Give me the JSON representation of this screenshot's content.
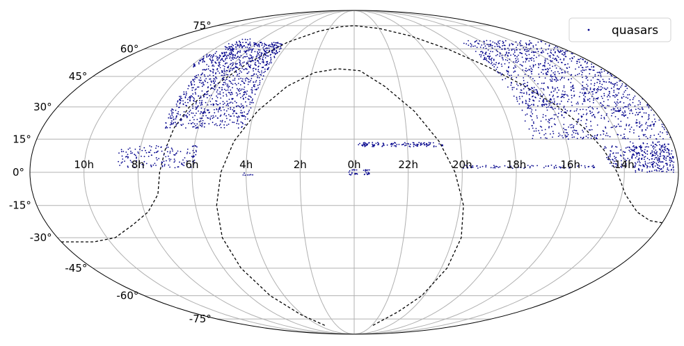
{
  "chart_data": {
    "type": "scatter",
    "projection": "mollweide",
    "grid": true,
    "legend": {
      "position": "top-right",
      "entries": [
        {
          "label": "quasars",
          "marker": "dot"
        }
      ]
    },
    "colors": {
      "points": "#00008b",
      "grid": "#b0b0b0",
      "outline": "#000000",
      "boundary": "#000000"
    },
    "ra_ticks": [
      "10h",
      "8h",
      "6h",
      "4h",
      "2h",
      "0h",
      "22h",
      "20h",
      "18h",
      "16h",
      "14h"
    ],
    "dec_ticks": [
      "75°",
      "60°",
      "45°",
      "30°",
      "15°",
      "0°",
      "-15°",
      "-30°",
      "-45°",
      "-60°",
      "-75°"
    ],
    "series": [
      {
        "name": "quasars",
        "regions": [
          {
            "lon": [
              -9.5,
              8.0
            ],
            "lat": [
              6,
              30
            ],
            "density": 340,
            "note": ""
          },
          {
            "lon": [
              -27.0,
              -10.0
            ],
            "lat": [
              2,
              14
            ],
            "density": 240,
            "note": ""
          },
          {
            "lon": [
              -28.5,
              -23.0
            ],
            "lat": [
              27,
              35
            ],
            "density": 45,
            "note": ""
          },
          {
            "lon": [
              13.5,
              30.0
            ],
            "lat": [
              15,
              64
            ],
            "density": 700,
            "note": ""
          },
          {
            "lon": [
              -4.5,
              -0.5
            ],
            "lat": [
              3,
              14
            ],
            "density": 55,
            "note": ""
          },
          {
            "lon": [
              -8.0,
              -2.5
            ],
            "lat": [
              -6,
              0
            ],
            "density": 30,
            "note": ""
          },
          {
            "lon": [
              -22.0,
              -6.0
            ],
            "lat": [
              -10,
              -8
            ],
            "density": 40,
            "note": ""
          },
          {
            "lon": [
              -5.0,
              1.0
            ],
            "lat": [
              -8,
              6
            ],
            "density": 0,
            "note": ""
          }
        ],
        "stripes": [
          {
            "lon": [
              -50,
              -2
            ],
            "lat": [
              11.5,
              13.5
            ],
            "count": 110
          },
          {
            "lon": [
              -135,
              -60
            ],
            "lat": [
              1.8,
              3.2
            ],
            "count": 70
          },
          {
            "lon": [
              -8.5,
              3.0
            ],
            "lat": [
              -1.2,
              1.2
            ],
            "count": 35
          },
          {
            "lon": [
              55,
              62
            ],
            "lat": [
              -1.5,
              -0.3
            ],
            "count": 8
          }
        ],
        "blobs": [
          {
            "lon": [
              -180,
              -100
            ],
            "lat": [
              15,
              65
            ],
            "count": 1100
          },
          {
            "lon": [
              62,
              110
            ],
            "lat": [
              20,
              64
            ],
            "count": 1000
          },
          {
            "lon": [
              -178,
              -155
            ],
            "lat": [
              0,
              14
            ],
            "count": 180
          },
          {
            "lon": [
              -178,
              -140
            ],
            "lat": [
              2,
              12
            ],
            "count": 160
          },
          {
            "lon": [
              88,
              132
            ],
            "lat": [
              2,
              12
            ],
            "count": 150
          },
          {
            "lon": [
              -175,
              -150
            ],
            "lat": [
              25,
              40
            ],
            "count": 70
          },
          {
            "lon": [
              95,
              115
            ],
            "lat": [
              52,
              66
            ],
            "count": 60
          },
          {
            "lon": [
              116,
              120
            ],
            "lat": [
              50,
              57
            ],
            "count": 25
          },
          {
            "lon": [
              -140,
              -132
            ],
            "lat": [
              42,
              55
            ],
            "count": 25
          },
          {
            "lon": [
              -118,
              -105
            ],
            "lat": [
              30,
              42
            ],
            "count": 30
          }
        ]
      }
    ],
    "boundaries": [
      {
        "name": "",
        "points": [
          [
            -180,
            -23
          ],
          [
            -172,
            -22
          ],
          [
            -162,
            -18
          ],
          [
            -152,
            -10
          ],
          [
            -146,
            0
          ],
          [
            -140,
            10
          ],
          [
            -133,
            20
          ],
          [
            -124,
            30
          ],
          [
            -112,
            40
          ],
          [
            -98,
            50
          ],
          [
            -80,
            60
          ],
          [
            -58,
            68
          ],
          [
            -30,
            73
          ],
          [
            0,
            75
          ],
          [
            20,
            74
          ],
          [
            40,
            71
          ],
          [
            62,
            64
          ],
          [
            80,
            52
          ],
          [
            92,
            40
          ],
          [
            100,
            30
          ],
          [
            104,
            20
          ],
          [
            106,
            10
          ],
          [
            108,
            0
          ],
          [
            110,
            -10
          ],
          [
            118,
            -18
          ],
          [
            130,
            -24
          ],
          [
            145,
            -30
          ],
          [
            160,
            -32
          ],
          [
            180,
            -32
          ]
        ]
      },
      {
        "name": "",
        "points": [
          [
            -32,
            -80
          ],
          [
            -48,
            -70
          ],
          [
            -58,
            -60
          ],
          [
            -64,
            -45
          ],
          [
            -65,
            -30
          ],
          [
            -62,
            -15
          ],
          [
            -56,
            0
          ],
          [
            -48,
            14
          ],
          [
            -36,
            28
          ],
          [
            -20,
            40
          ],
          [
            -4,
            48
          ],
          [
            12,
            49
          ],
          [
            28,
            47
          ],
          [
            44,
            40
          ],
          [
            58,
            28
          ],
          [
            68,
            14
          ],
          [
            74,
            0
          ],
          [
            78,
            -15
          ],
          [
            80,
            -30
          ],
          [
            78,
            -45
          ],
          [
            72,
            -60
          ],
          [
            62,
            -72
          ],
          [
            50,
            -80
          ]
        ]
      }
    ]
  }
}
